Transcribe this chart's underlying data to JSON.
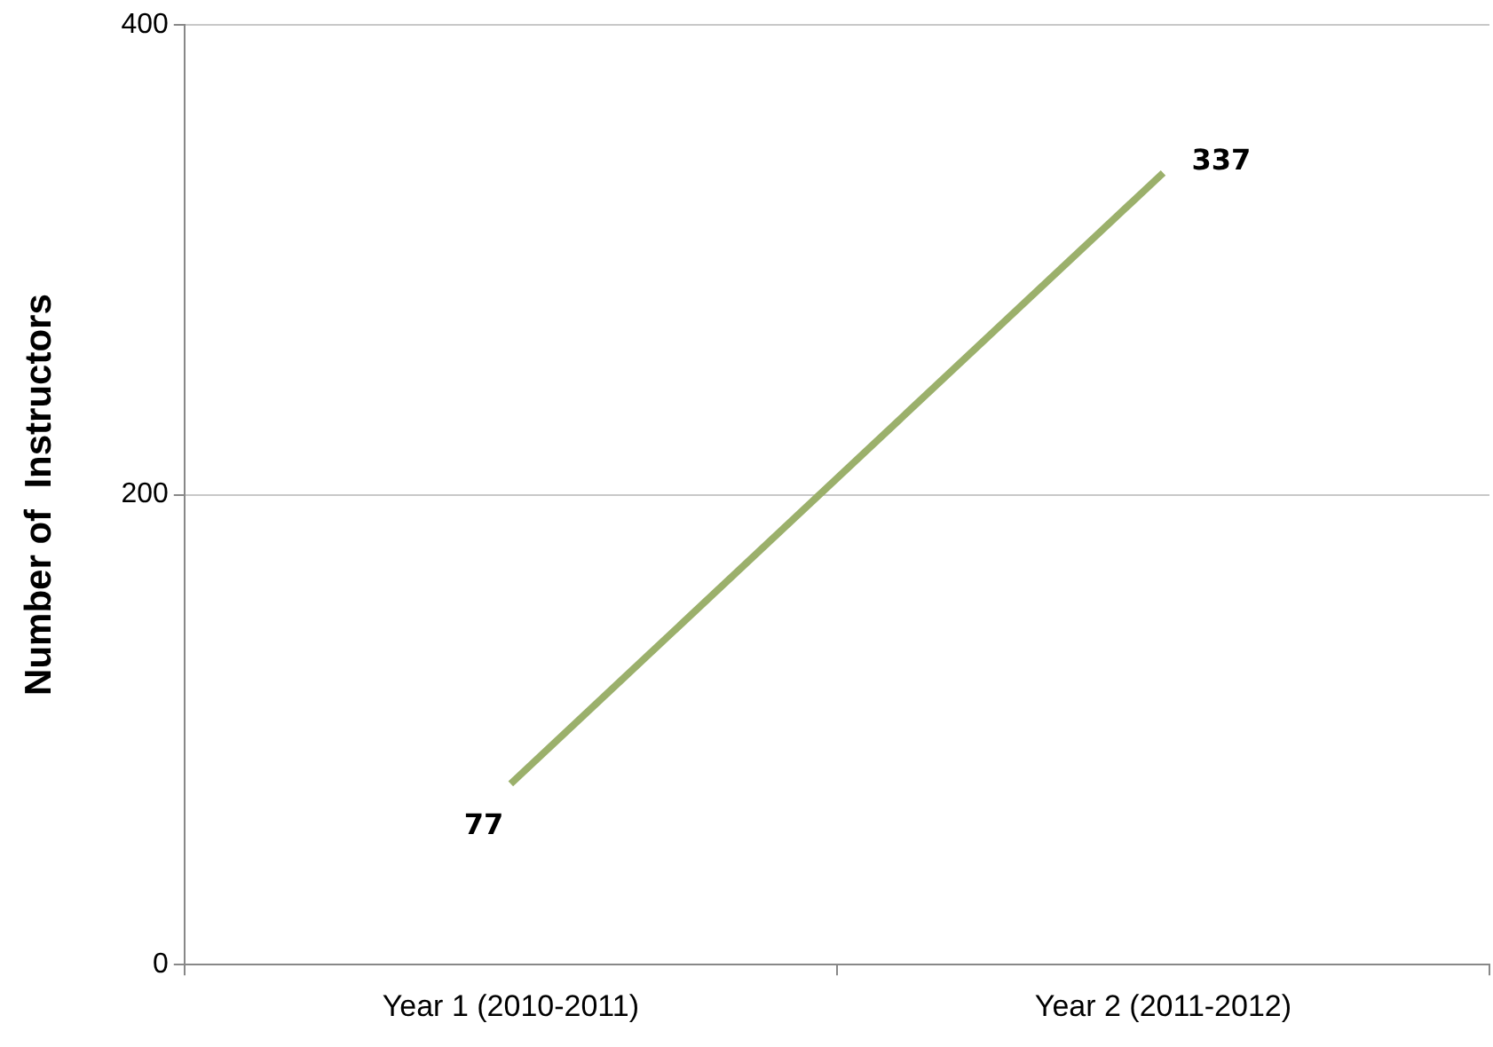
{
  "chart_data": {
    "type": "line",
    "ylabel": "Number of  Instructors",
    "categories": [
      "Year 1 (2010-2011)",
      "Year 2 (2011-2012)"
    ],
    "series": [
      {
        "color": "#9bb06b",
        "values": [
          77,
          337
        ]
      }
    ],
    "ylim": [
      0,
      400
    ],
    "yticks": [
      0,
      200,
      400
    ],
    "grid": "y",
    "legend": false,
    "marker": "none",
    "data_labels": true
  }
}
